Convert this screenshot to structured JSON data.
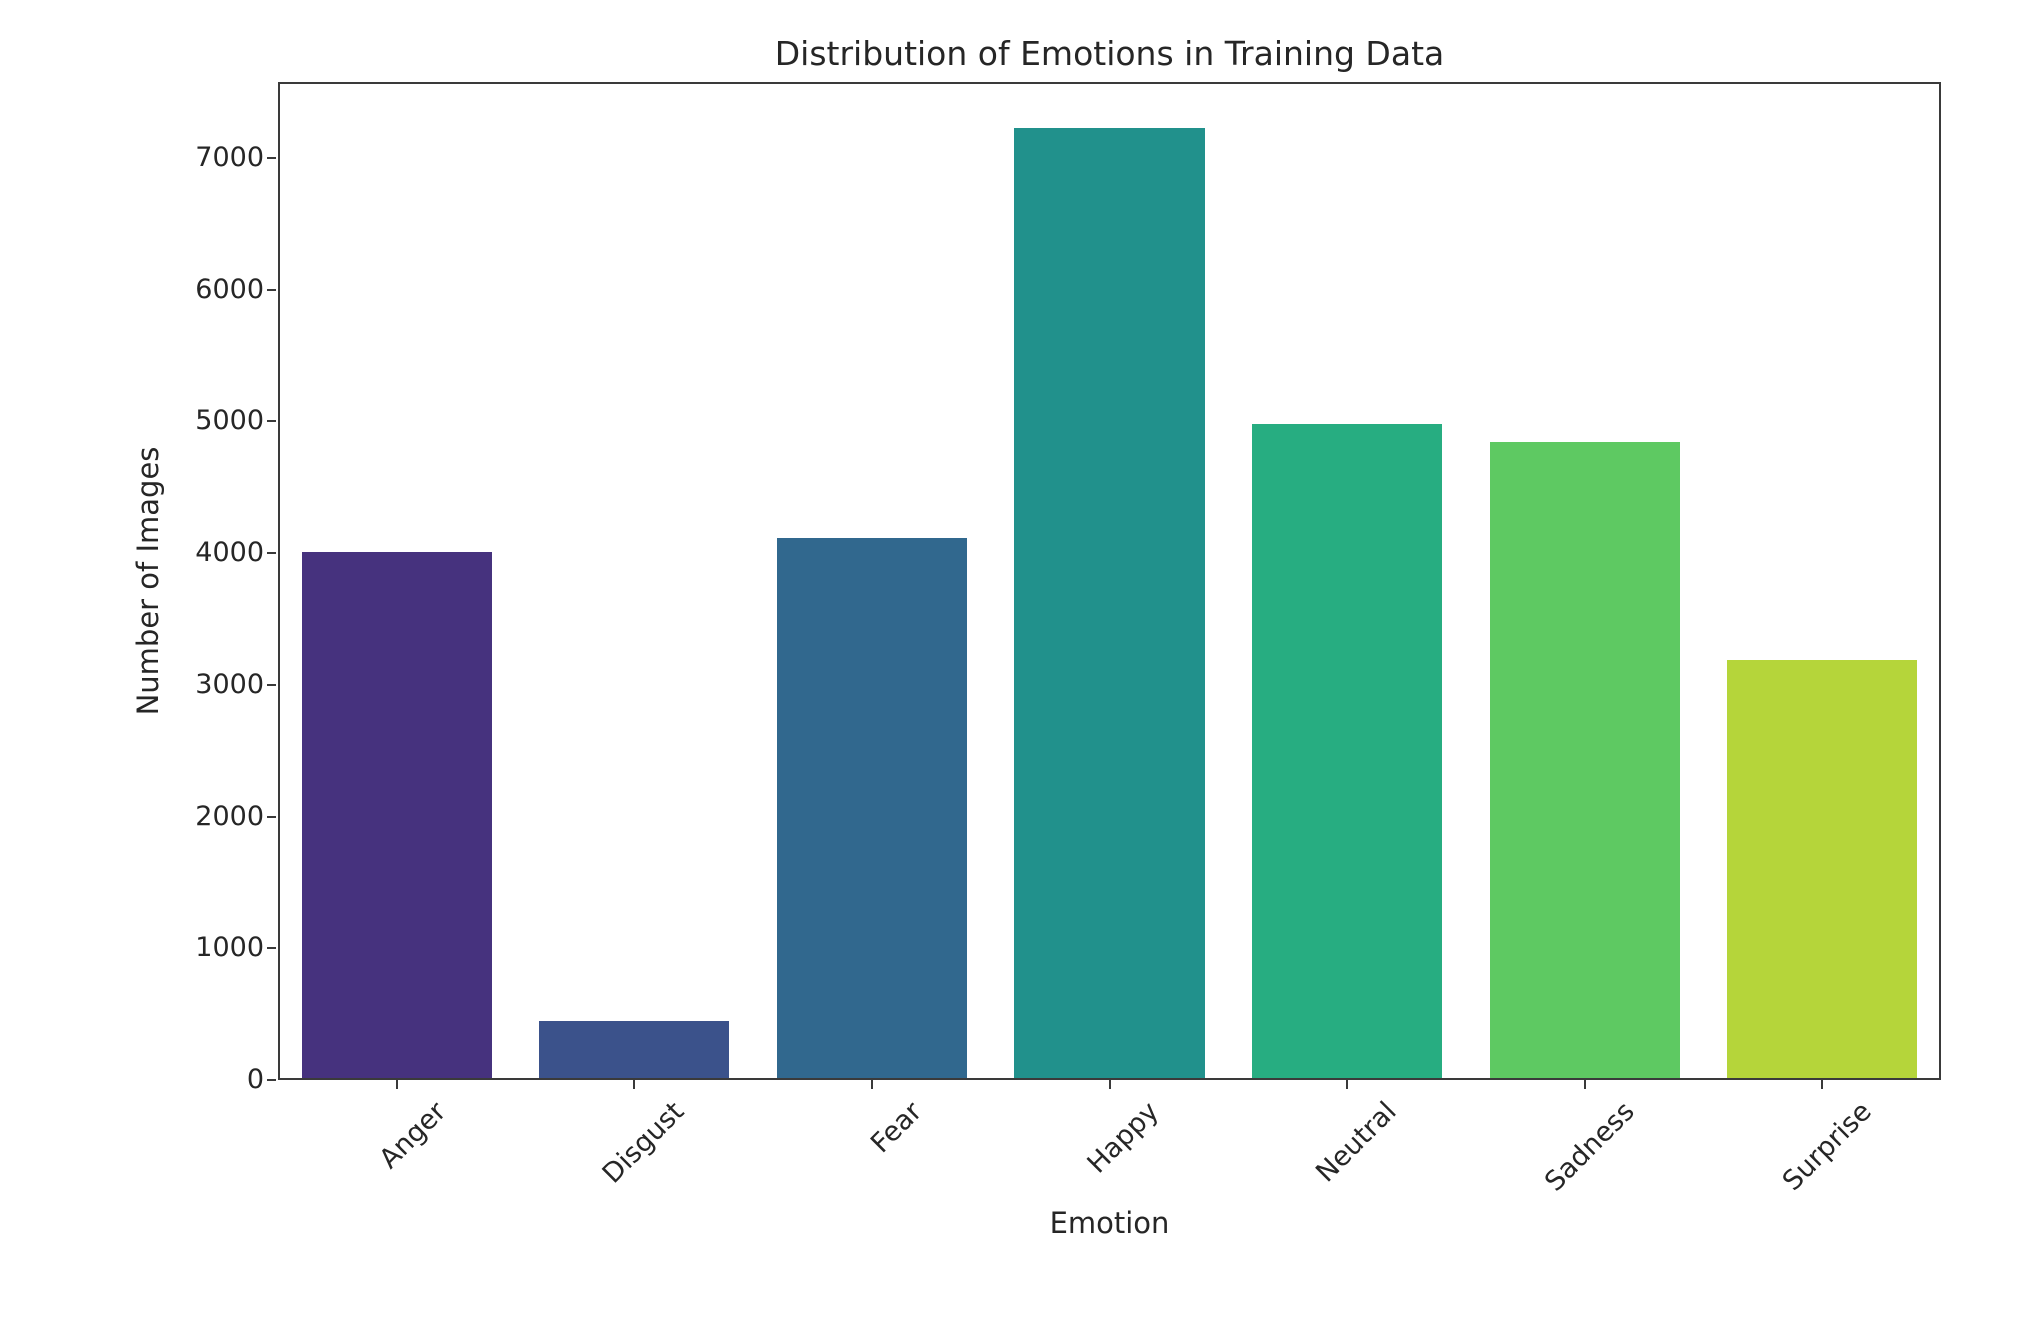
{
  "chart_data": {
    "type": "bar",
    "title": "Distribution of Emotions in Training Data",
    "xlabel": "Emotion",
    "ylabel": "Number of Images",
    "categories": [
      "Anger",
      "Disgust",
      "Fear",
      "Happy",
      "Neutral",
      "Sadness",
      "Surprise"
    ],
    "values": [
      3995,
      436,
      4097,
      7215,
      4965,
      4830,
      3171
    ],
    "bar_colors": [
      "#46327e",
      "#3b528b",
      "#31688e",
      "#21918c",
      "#27ad81",
      "#5ec962",
      "#b5d53a"
    ],
    "ylim": [
      0,
      7576
    ],
    "yticks": [
      0,
      1000,
      2000,
      3000,
      4000,
      5000,
      6000,
      7000
    ],
    "bar_width_fraction": 0.8,
    "grid": false,
    "legend_position": "none",
    "axis_color": "#3a3a3a",
    "text_color": "#262626",
    "background_color": "#ffffff"
  }
}
